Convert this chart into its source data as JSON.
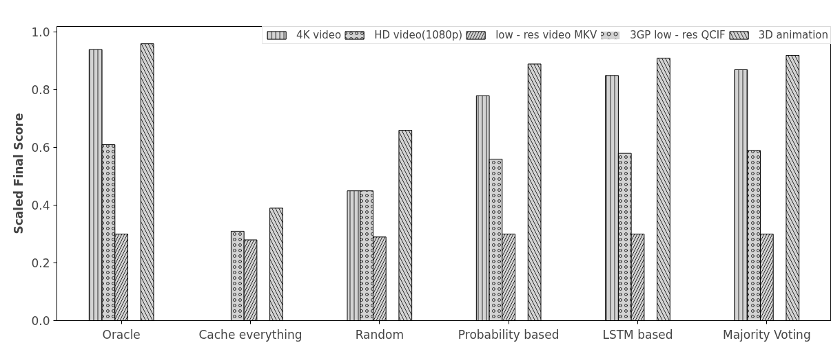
{
  "chart_data": {
    "type": "bar",
    "ylabel": "Scaled Final Score",
    "categories": [
      "Oracle",
      "Cache everything",
      "Random",
      "Probability based",
      "LSTM based",
      "Majority Voting"
    ],
    "series": [
      {
        "name": "4K video",
        "color": "#d3d3d3",
        "values": [
          0.94,
          0,
          0.45,
          0.78,
          0.85,
          0.87
        ]
      },
      {
        "name": "HD video(1080p)",
        "color": "#d3d3d3",
        "values": [
          0.61,
          0.31,
          0.45,
          0.56,
          0.58,
          0.59
        ]
      },
      {
        "name": "low - res video MKV",
        "color": "#d3d3d3",
        "values": [
          0.3,
          0.28,
          0.29,
          0.3,
          0.3,
          0.3
        ]
      },
      {
        "name": "3GP low - res QCIF",
        "color": "#d3d3d3",
        "values": [
          0,
          0,
          0,
          0,
          0,
          0
        ]
      },
      {
        "name": "3D animation",
        "color": "#d3d3d3",
        "values": [
          0.96,
          0.39,
          0.66,
          0.89,
          0.91,
          0.92
        ]
      }
    ],
    "ylim": [
      0,
      1.02
    ],
    "yticks": [
      {
        "value": 0,
        "label": "0.0"
      },
      0.2,
      0.4,
      0.6,
      0.8,
      {
        "value": 1,
        "label": "1.0"
      }
    ],
    "grid": false,
    "legend": "top right"
  }
}
